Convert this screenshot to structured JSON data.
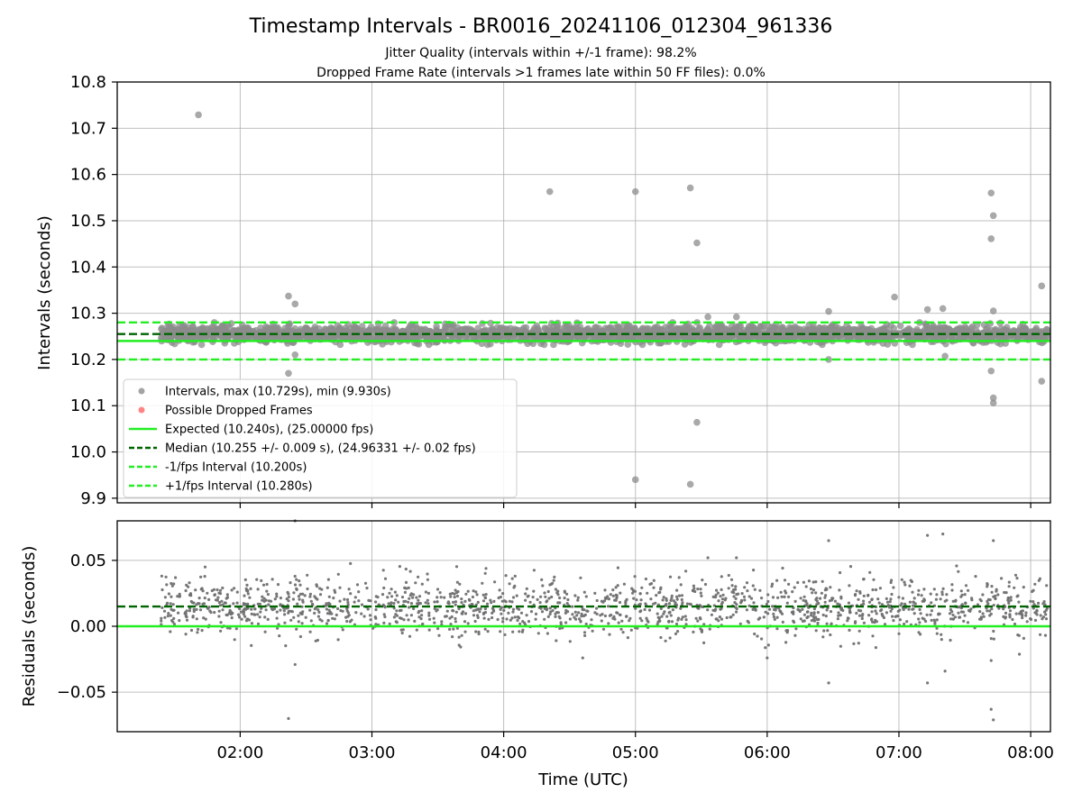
{
  "title": "Timestamp Intervals - BR0016_20241106_012304_961336",
  "subtitle_lines": [
    "Jitter Quality (intervals within +/-1 frame): 98.2%",
    "Dropped Frame Rate (intervals >1 frames late within 50 FF files): 0.0%"
  ],
  "chart_data": [
    {
      "type": "scatter",
      "panel": "intervals",
      "xlabel": "",
      "ylabel": "Intervals (seconds)",
      "xlim": [
        "01:04",
        "08:09"
      ],
      "ylim": [
        9.89,
        10.8
      ],
      "yticks": [
        "10.8",
        "10.7",
        "10.6",
        "10.5",
        "10.4",
        "10.3",
        "10.2",
        "10.1",
        "10.0",
        "9.9"
      ],
      "ytick_values": [
        10.8,
        10.7,
        10.6,
        10.5,
        10.4,
        10.3,
        10.2,
        10.1,
        10.0,
        9.9
      ],
      "grid": true,
      "legend_position": "lower-left",
      "legend": [
        "Intervals, max (10.729s), min (9.930s)",
        "Possible Dropped Frames",
        "Expected (10.240s), (25.00000 fps)",
        "Median (10.255 +/- 0.009 s), (24.96331 +/- 0.02 fps)",
        "-1/fps Interval (10.200s)",
        "+1/fps Interval (10.280s)"
      ],
      "reference_lines": [
        {
          "label": "Expected",
          "y": 10.24,
          "style": "solid",
          "color": "#22ee22"
        },
        {
          "label": "Median",
          "y": 10.255,
          "style": "dashed",
          "color": "#006400"
        },
        {
          "label": "-1/fps Interval",
          "y": 10.2,
          "style": "dashed",
          "color": "#22ee22"
        },
        {
          "label": "+1/fps Interval",
          "y": 10.28,
          "style": "dashed",
          "color": "#22ee22"
        }
      ],
      "series": [
        {
          "name": "Intervals, max (10.729s), min (9.930s)",
          "color": "#8c8c8c",
          "x_range": [
            "01:24",
            "08:08"
          ],
          "typical_y": 10.255,
          "typical_spread": 0.009,
          "outliers": [
            {
              "x": "01:41",
              "y": 10.729
            },
            {
              "x": "02:22",
              "y": 10.337
            },
            {
              "x": "02:25",
              "y": 10.32
            },
            {
              "x": "02:22",
              "y": 10.17
            },
            {
              "x": "02:25",
              "y": 10.21
            },
            {
              "x": "04:21",
              "y": 10.563
            },
            {
              "x": "05:00",
              "y": 10.563
            },
            {
              "x": "05:00",
              "y": 9.94
            },
            {
              "x": "05:25",
              "y": 10.571
            },
            {
              "x": "05:25",
              "y": 9.93
            },
            {
              "x": "05:28",
              "y": 10.452
            },
            {
              "x": "05:28",
              "y": 10.064
            },
            {
              "x": "05:33",
              "y": 10.292
            },
            {
              "x": "05:46",
              "y": 10.292
            },
            {
              "x": "06:28",
              "y": 10.304
            },
            {
              "x": "06:28",
              "y": 10.2
            },
            {
              "x": "06:58",
              "y": 10.335
            },
            {
              "x": "07:13",
              "y": 10.308
            },
            {
              "x": "07:20",
              "y": 10.31
            },
            {
              "x": "07:21",
              "y": 10.207
            },
            {
              "x": "07:42",
              "y": 10.56
            },
            {
              "x": "07:43",
              "y": 10.511
            },
            {
              "x": "07:42",
              "y": 10.461
            },
            {
              "x": "07:43",
              "y": 10.305
            },
            {
              "x": "07:42",
              "y": 10.175
            },
            {
              "x": "07:43",
              "y": 10.117
            },
            {
              "x": "07:43",
              "y": 10.106
            },
            {
              "x": "08:05",
              "y": 10.359
            },
            {
              "x": "08:05",
              "y": 10.153
            }
          ]
        },
        {
          "name": "Possible Dropped Frames",
          "color": "#ff6666",
          "points": []
        }
      ]
    },
    {
      "type": "scatter",
      "panel": "residuals",
      "xlabel": "Time (UTC)",
      "ylabel": "Residuals (seconds)",
      "xlim": [
        "01:04",
        "08:09"
      ],
      "xticks": [
        "02:00",
        "03:00",
        "04:00",
        "05:00",
        "06:00",
        "07:00",
        "08:00"
      ],
      "ylim": [
        -0.08,
        0.08
      ],
      "yticks": [
        "0.05",
        "0.00",
        "−0.05"
      ],
      "ytick_values": [
        0.05,
        0.0,
        -0.05
      ],
      "grid": true,
      "reference_lines": [
        {
          "label": "Expected",
          "y": 0.0,
          "style": "solid",
          "color": "#22ee22"
        },
        {
          "label": "Median",
          "y": 0.015,
          "style": "dashed",
          "color": "#006400"
        }
      ],
      "series": [
        {
          "name": "Residuals",
          "color": "#707070",
          "x_range": [
            "01:24",
            "08:08"
          ],
          "typical_y": 0.015,
          "typical_spread": 0.011,
          "outliers": [
            {
              "x": "02:25",
              "y": 0.08
            },
            {
              "x": "02:22",
              "y": -0.07
            },
            {
              "x": "02:25",
              "y": -0.029
            },
            {
              "x": "04:36",
              "y": -0.024
            },
            {
              "x": "05:33",
              "y": 0.052
            },
            {
              "x": "05:46",
              "y": 0.052
            },
            {
              "x": "06:00",
              "y": -0.024
            },
            {
              "x": "06:28",
              "y": 0.065
            },
            {
              "x": "06:28",
              "y": -0.043
            },
            {
              "x": "07:13",
              "y": 0.069
            },
            {
              "x": "07:20",
              "y": 0.07
            },
            {
              "x": "07:13",
              "y": -0.043
            },
            {
              "x": "07:21",
              "y": -0.034
            },
            {
              "x": "07:43",
              "y": 0.065
            },
            {
              "x": "07:42",
              "y": -0.063
            },
            {
              "x": "07:43",
              "y": -0.071
            },
            {
              "x": "07:42",
              "y": -0.026
            }
          ]
        }
      ]
    }
  ]
}
